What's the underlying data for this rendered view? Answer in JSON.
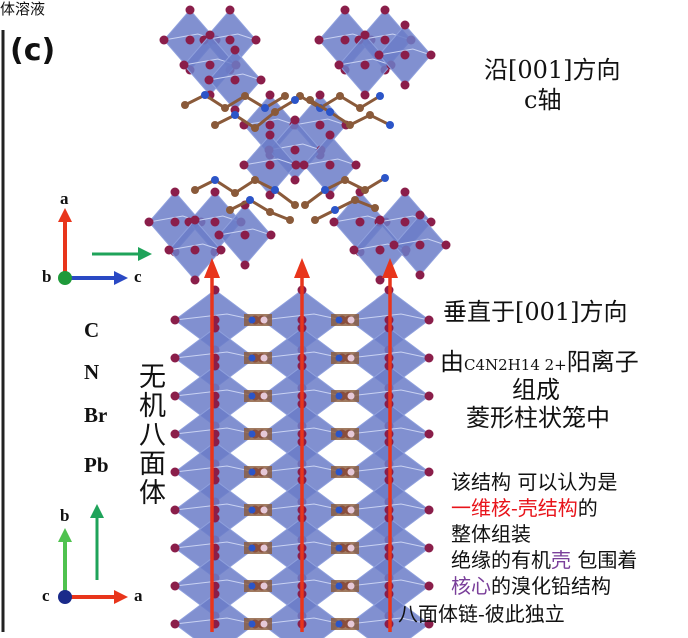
{
  "header": {
    "fragment": "体溶液",
    "panel": "(c)"
  },
  "top_axes": {
    "a": "a",
    "b": "b",
    "c": "c"
  },
  "bottom_axes": {
    "b": "b",
    "c": "c",
    "a": "a"
  },
  "legend": [
    "C",
    "N",
    "Br",
    "Pb"
  ],
  "vertical_label": "无机八面体",
  "annotations": {
    "view_along": "沿[001]方向",
    "c_axis": "c轴",
    "perpendicular": "垂直于[001]方向",
    "cation": [
      "由",
      "C4N2H14 2+",
      "阳离子"
    ],
    "compose": "组成",
    "cage": "菱形柱状笼中",
    "desc": [
      [
        "该结构 可以认为是"
      ],
      [
        "一维核-壳结构",
        "的"
      ],
      [
        "整体组装"
      ],
      [
        "绝缘的有机",
        "壳",
        " 包围着"
      ],
      [
        "核心",
        "的溴化铅结构"
      ],
      [
        "八面体链-彼此独立"
      ]
    ]
  }
}
